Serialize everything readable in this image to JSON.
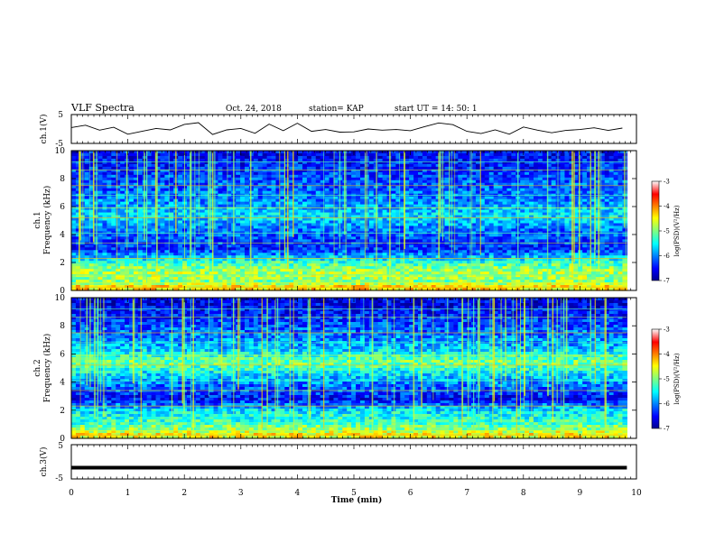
{
  "header": {
    "title": "VLF Spectra",
    "date": "Oct. 24, 2018",
    "station": "station= KAP",
    "start_ut": "start  UT  =   14: 50: 1"
  },
  "chart_data": [
    {
      "type": "line",
      "name": "ch1-waveform",
      "ylabel": "ch.1(V)",
      "ylim": [
        -5,
        5
      ],
      "yticks": [
        "5",
        "-5"
      ],
      "xlim": [
        0,
        10
      ],
      "x": [
        0,
        0.25,
        0.5,
        0.75,
        1.0,
        1.25,
        1.5,
        1.75,
        2.0,
        2.25,
        2.5,
        2.75,
        3.0,
        3.25,
        3.5,
        3.75,
        4.0,
        4.25,
        4.5,
        4.75,
        5.0,
        5.25,
        5.5,
        5.75,
        6.0,
        6.25,
        6.5,
        6.75,
        7.0,
        7.25,
        7.5,
        7.75,
        8.0,
        8.25,
        8.5,
        8.75,
        9.0,
        9.25,
        9.5,
        9.75
      ],
      "values": [
        0.5,
        1.3,
        -0.4,
        0.6,
        -1.8,
        -0.8,
        0.2,
        -0.3,
        1.6,
        2.2,
        -1.9,
        -0.3,
        0.2,
        -1.5,
        1.7,
        -0.6,
        2.0,
        -0.8,
        -0.2,
        -1.1,
        -1.0,
        0.0,
        -0.4,
        -0.2,
        -0.6,
        0.8,
        2.1,
        1.5,
        -0.8,
        -1.6,
        -0.3,
        -1.8,
        0.7,
        -0.4,
        -1.3,
        -0.5,
        -0.2,
        0.4,
        -0.5,
        0.3
      ]
    },
    {
      "type": "heatmap",
      "name": "ch1-spectrogram",
      "ylabel": "ch.1\nFrequency (kHz)",
      "ylim": [
        0,
        10
      ],
      "yticks": [
        "0",
        "2",
        "4",
        "6",
        "8",
        "10"
      ],
      "xlim": [
        0,
        10
      ],
      "colorbar": {
        "label": "log(PSD)(V²/Hz)",
        "range": [
          -7,
          -3
        ],
        "ticks": [
          "-3",
          "-4",
          "-5",
          "-6",
          "-7"
        ]
      },
      "bands_khz": [
        {
          "f": 0.3,
          "level": -4.4
        },
        {
          "f": 0.6,
          "level": -5.0
        },
        {
          "f": 1.0,
          "level": -4.8
        },
        {
          "f": 1.5,
          "level": -4.9
        },
        {
          "f": 2.0,
          "level": -5.3
        },
        {
          "f": 3.0,
          "level": -6.4
        },
        {
          "f": 4.5,
          "level": -6.0
        },
        {
          "f": 5.3,
          "level": -5.6
        },
        {
          "f": 6.5,
          "level": -6.0
        },
        {
          "f": 8.0,
          "level": -6.2
        },
        {
          "f": 9.5,
          "level": -6.5
        }
      ]
    },
    {
      "type": "heatmap",
      "name": "ch2-spectrogram",
      "ylabel": "ch.2\nFrequency (kHz)",
      "ylim": [
        0,
        10
      ],
      "yticks": [
        "0",
        "2",
        "4",
        "6",
        "8",
        "10"
      ],
      "xlim": [
        0,
        10
      ],
      "colorbar": {
        "label": "log(PSD)(V²/Hz)",
        "range": [
          -7,
          -3
        ],
        "ticks": [
          "-3",
          "-4",
          "-5",
          "-6",
          "-7"
        ]
      },
      "bands_khz": [
        {
          "f": 0.3,
          "level": -4.5
        },
        {
          "f": 1.0,
          "level": -5.2
        },
        {
          "f": 2.0,
          "level": -5.6
        },
        {
          "f": 2.8,
          "level": -6.5
        },
        {
          "f": 3.5,
          "level": -6.2
        },
        {
          "f": 4.6,
          "level": -5.6
        },
        {
          "f": 5.4,
          "level": -5.0
        },
        {
          "f": 6.5,
          "level": -5.8
        },
        {
          "f": 8.0,
          "level": -6.2
        },
        {
          "f": 9.5,
          "level": -6.6
        }
      ]
    },
    {
      "type": "line",
      "name": "ch3-waveform",
      "ylabel": "ch.3(V)",
      "ylim": [
        -5,
        5
      ],
      "yticks": [
        "5",
        "-5"
      ],
      "xlim": [
        0,
        10
      ],
      "x": [
        0,
        9.83
      ],
      "values": [
        -1.7,
        -1.7
      ],
      "xlabel": "Time (min)",
      "xticks": [
        "0",
        "1",
        "2",
        "3",
        "4",
        "5",
        "6",
        "7",
        "8",
        "9",
        "10"
      ]
    }
  ],
  "colors": {
    "jet": [
      "#00008f",
      "#0000ff",
      "#0080ff",
      "#00ffff",
      "#80ff80",
      "#ffff00",
      "#ff8000",
      "#ff0000",
      "#800000"
    ]
  }
}
